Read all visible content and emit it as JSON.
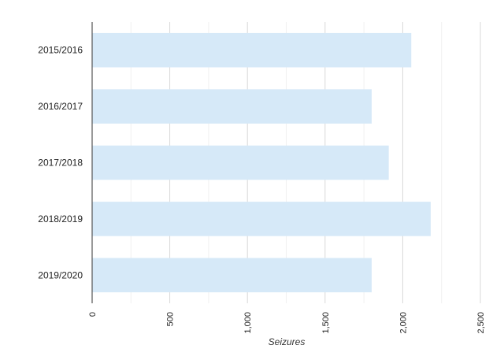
{
  "chart_data": {
    "type": "bar",
    "orientation": "horizontal",
    "title": "",
    "xlabel": "Seizures",
    "ylabel": "",
    "categories": [
      "2015/2016",
      "2016/2017",
      "2017/2018",
      "2018/2019",
      "2019/2020"
    ],
    "values": [
      2055,
      1800,
      1910,
      2180,
      1800
    ],
    "xlim": [
      0,
      2500
    ],
    "xticks": [
      0,
      500,
      1000,
      1500,
      2000,
      2500
    ],
    "xtick_labels": [
      "0",
      "500",
      "1,000",
      "1,500",
      "2,000",
      "2,500"
    ],
    "grid": true,
    "legend": "none",
    "colors": {
      "bar": "#d6e9f8",
      "grid_major": "#d9d9d9",
      "grid_minor": "#f0f0f0",
      "axis": "#555555",
      "text": "#222222"
    }
  }
}
